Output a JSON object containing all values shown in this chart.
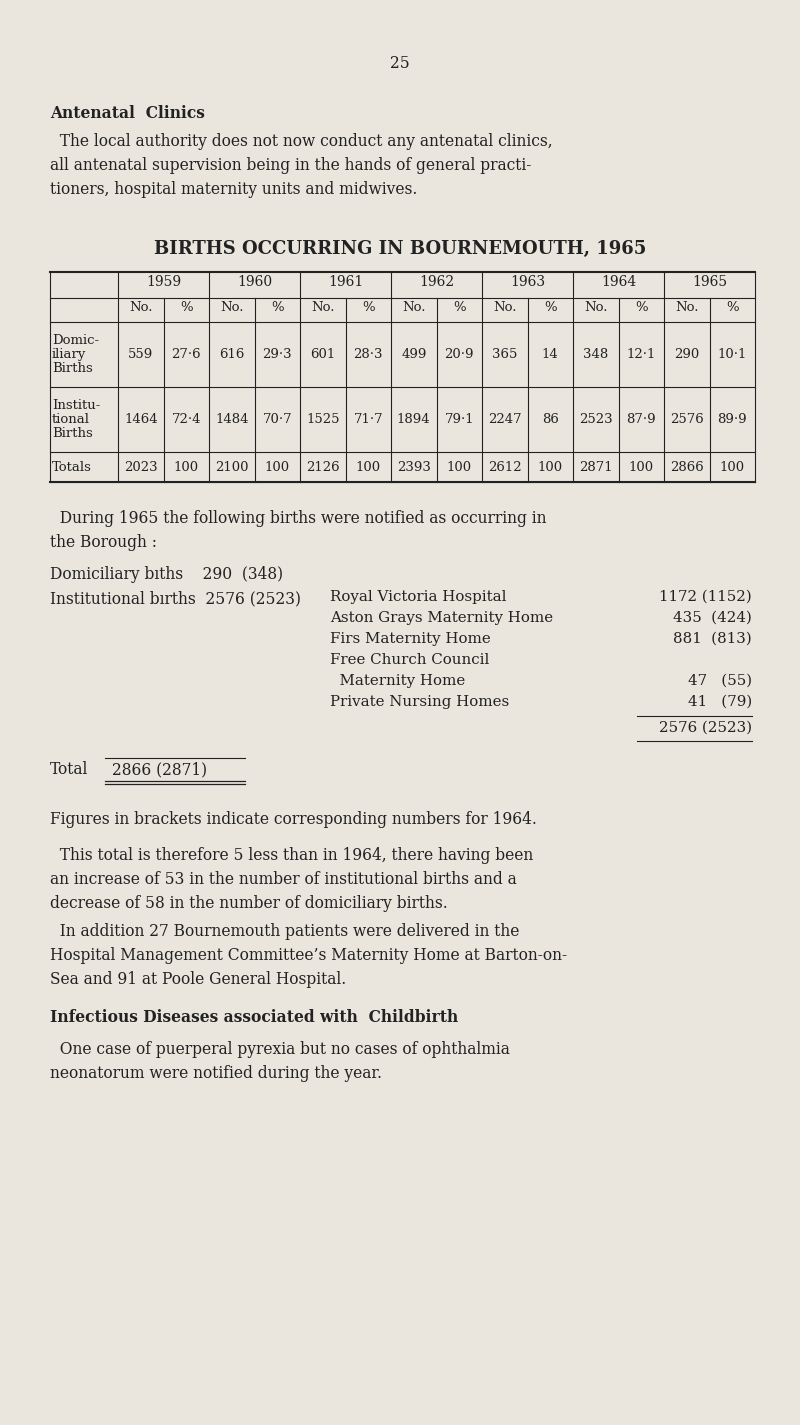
{
  "bg_color": "#eae6de",
  "page_number": "25",
  "section_title": "Antenatal  Clinics",
  "intro_lines": [
    "  The local authority does not now conduct any antenatal clinics,",
    "all antenatal supervision being in the hands of general practi-",
    "tioners, hospital maternity units and midwives."
  ],
  "table_title": "BIRTHS OCCURRING IN BOURNEMOUTH, 1965",
  "table_years": [
    "1959",
    "1960",
    "1961",
    "1962",
    "1963",
    "1964",
    "1965"
  ],
  "row1_label": [
    "Domic-",
    "iliary",
    "Births"
  ],
  "row1_values": [
    [
      "559",
      "27·6"
    ],
    [
      "616",
      "29·3"
    ],
    [
      "601",
      "28·3"
    ],
    [
      "499",
      "20·9"
    ],
    [
      "365",
      "14"
    ],
    [
      "348",
      "12·1"
    ],
    [
      "290",
      "10·1"
    ]
  ],
  "row2_label": [
    "Institu-",
    "tional",
    "Births"
  ],
  "row2_values": [
    [
      "1464",
      "72·4"
    ],
    [
      "1484",
      "70·7"
    ],
    [
      "1525",
      "71·7"
    ],
    [
      "1894",
      "79·1"
    ],
    [
      "2247",
      "86"
    ],
    [
      "2523",
      "87·9"
    ],
    [
      "2576",
      "89·9"
    ]
  ],
  "row3_label": [
    "Totals"
  ],
  "row3_values": [
    [
      "2023",
      "100"
    ],
    [
      "2100",
      "100"
    ],
    [
      "2126",
      "100"
    ],
    [
      "2393",
      "100"
    ],
    [
      "2612",
      "100"
    ],
    [
      "2871",
      "100"
    ],
    [
      "2866",
      "100"
    ]
  ],
  "during_lines": [
    "  During 1965 the following births were notified as occurring in",
    "the Borough :"
  ],
  "domic_text": "Domiciliary bıths    290  (348)",
  "instit_text": "Institutional bırths  2576 (2523)",
  "hosp_names": [
    "Royal Victoria Hospital",
    "Aston Grays Maternity Home",
    "Firs Maternity Home",
    "Free Church Council",
    "  Maternity Home",
    "Private Nursing Homes"
  ],
  "hosp_values": [
    "1172 (1152)",
    "435  (424)",
    "881  (813)",
    "",
    "47   (55)",
    "41   (79)"
  ],
  "subtotal": "2576 (2523)",
  "total_label": "Total",
  "total_value": "2866 (2871)",
  "note_line": "Figures in brackets indicate corresponding numbers for 1964.",
  "para2_lines": [
    "  This total is therefore 5 less than in 1964, there having been",
    "an increase of 53 in the number of institutional births and a",
    "decrease of 58 in the number of domiciliary births."
  ],
  "para3_lines": [
    "  In addition 27 Bournemouth patients were delivered in the",
    "Hospital Management Committee’s Maternity Home at Barton-on-",
    "Sea and 91 at Poole General Hospital."
  ],
  "section2_title": "Infectious Diseases associated with  Childbirth",
  "para4_lines": [
    "  One case of puerperal pyrexia but no cases of ophthalmia",
    "neonatorum were notified during the year."
  ]
}
